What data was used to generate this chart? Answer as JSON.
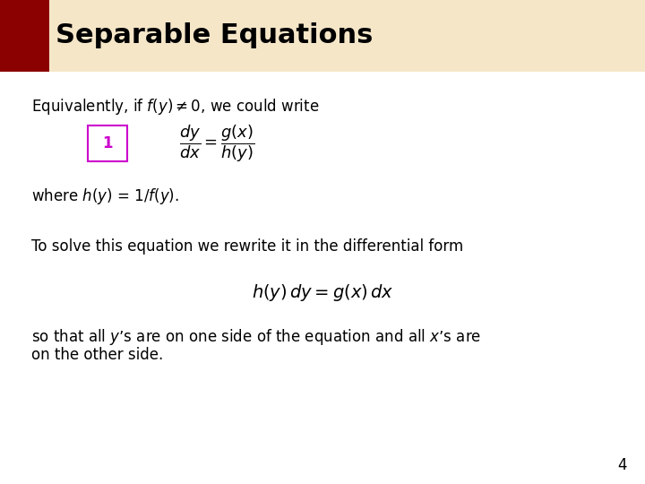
{
  "title": "Separable Equations",
  "title_color": "#000000",
  "red_square_color": "#8B0000",
  "magenta_box_color": "#CC00CC",
  "line1": "Equivalently, if $f(y) \\neq 0$, we could write",
  "equation_label": "1",
  "line2": "where $h(y)$ = 1/$f(y)$.",
  "line3": "To solve this equation we rewrite it in the differential form",
  "line4_part1": "so that all $y$’s are on one side of the equation and all $x$’s are",
  "line4_part2": "on the other side.",
  "page_num": "4",
  "bg_color": "#FFFFFF",
  "header_bg": "#F5E6C8",
  "title_fontsize": 22,
  "body_fontsize": 12,
  "eq_fontsize": 13,
  "diff_eq_fontsize": 14
}
